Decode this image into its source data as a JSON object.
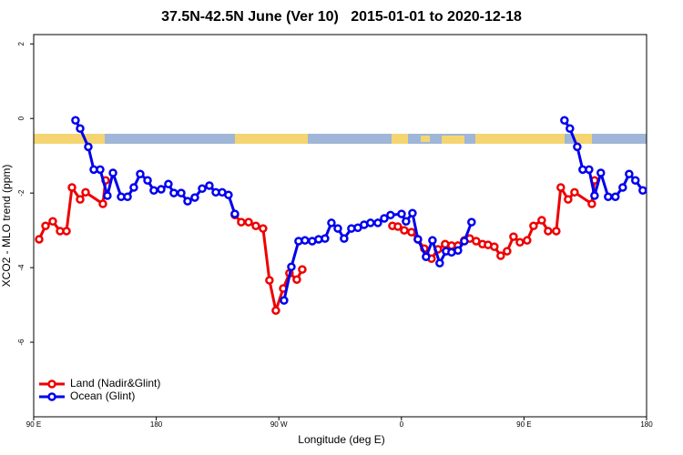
{
  "chart_data": {
    "type": "line",
    "title": "37.5N-42.5N June (Ver 10)   2015-01-01 to 2020-12-18",
    "x_label": "Longitude (deg E)",
    "y_label": "XCO2 - MLO trend (ppm)",
    "xlim": [
      90,
      540
    ],
    "xticks": [
      {
        "value": 90,
        "label": "90 E"
      },
      {
        "value": 180,
        "label": "180"
      },
      {
        "value": 270,
        "label": "90 W"
      },
      {
        "value": 360,
        "label": "0"
      },
      {
        "value": 450,
        "label": "90 E"
      },
      {
        "value": 540,
        "label": "180"
      }
    ],
    "ylim": [
      -8,
      2.25
    ],
    "yticks": [
      -6,
      -4,
      -2,
      0,
      2
    ],
    "legend": "bottom-left",
    "series": [
      {
        "name": "Land (Nadir&Glint)",
        "color": "#ee0000",
        "x": [
          94.0,
          98.7,
          104.0,
          109.4,
          114.1,
          118.1,
          124.1,
          128.1,
          140.8,
          142.8,
          null,
          237.7,
          242.4,
          247.8,
          253.1,
          258.4,
          263.1,
          267.8,
          273.2,
          277.8,
          283.2,
          287.2,
          null,
          353.4,
          357.4,
          362.1,
          367.4,
          372.1,
          376.8,
          382.1,
          386.8,
          392.1,
          396.8,
          401.5,
          406.2,
          410.2,
          414.9,
          419.5,
          423.6,
          428.2,
          432.9,
          437.6,
          442.3,
          447.0,
          452.3,
          457.0,
          463.0,
          467.7,
          473.7,
          477.0,
          482.4,
          487.1,
          499.8,
          501.8
        ],
        "values": [
          -3.24,
          -2.88,
          -2.76,
          -3.02,
          -3.02,
          -1.85,
          -2.17,
          -1.98,
          -2.29,
          -1.66,
          null,
          -2.59,
          -2.78,
          -2.78,
          -2.88,
          -2.95,
          -4.34,
          -5.15,
          -4.56,
          -4.15,
          -4.32,
          -4.05,
          null,
          -2.88,
          -2.9,
          -3.0,
          -3.05,
          -3.24,
          -3.49,
          -3.76,
          -3.51,
          -3.37,
          -3.41,
          -3.41,
          -3.27,
          -3.22,
          -3.29,
          -3.37,
          -3.39,
          -3.44,
          -3.68,
          -3.56,
          -3.17,
          -3.32,
          -3.27,
          -2.88,
          -2.73,
          -3.02,
          -3.02,
          -1.85,
          -2.17,
          -1.98,
          -2.29,
          -1.66
        ]
      },
      {
        "name": "Ocean (Glint)",
        "color": "#0000ee",
        "x": [
          120.7,
          124.1,
          130.1,
          134.1,
          138.8,
          144.1,
          148.2,
          154.2,
          158.9,
          163.5,
          168.2,
          173.6,
          178.2,
          183.6,
          188.9,
          192.9,
          198.3,
          203.0,
          208.3,
          213.7,
          219.0,
          223.7,
          228.4,
          233.0,
          237.7,
          null,
          273.8,
          279.2,
          284.5,
          289.2,
          294.5,
          299.2,
          303.9,
          308.6,
          313.3,
          317.9,
          323.3,
          328.0,
          332.6,
          337.3,
          342.7,
          347.4,
          352.0,
          360.1,
          363.4,
          368.1,
          372.1,
          378.1,
          382.8,
          388.1,
          392.8,
          396.8,
          401.5,
          406.2,
          411.5,
          null,
          479.7,
          483.7,
          489.1,
          493.1,
          497.8,
          501.8,
          506.4,
          511.8,
          517.1,
          522.5,
          527.2,
          531.8,
          537.2
        ],
        "values": [
          -0.05,
          -0.27,
          -0.76,
          -1.37,
          -1.37,
          -2.07,
          -1.46,
          -2.1,
          -2.1,
          -1.85,
          -1.49,
          -1.66,
          -1.93,
          -1.9,
          -1.76,
          -2.0,
          -2.0,
          -2.22,
          -2.12,
          -1.88,
          -1.8,
          -1.98,
          -1.98,
          -2.05,
          -2.56,
          null,
          -4.88,
          -3.98,
          -3.29,
          -3.27,
          -3.29,
          -3.24,
          -3.22,
          -2.8,
          -2.95,
          -3.22,
          -2.95,
          -2.93,
          -2.85,
          -2.8,
          -2.8,
          -2.68,
          -2.59,
          -2.56,
          -2.76,
          -2.54,
          -3.24,
          -3.71,
          -3.27,
          -3.88,
          -3.56,
          -3.59,
          -3.54,
          -3.29,
          -2.78,
          null,
          -0.05,
          -0.27,
          -0.76,
          -1.37,
          -1.37,
          -2.07,
          -1.46,
          -2.1,
          -2.1,
          -1.85,
          -1.49,
          -1.66,
          -1.93
        ]
      }
    ]
  }
}
